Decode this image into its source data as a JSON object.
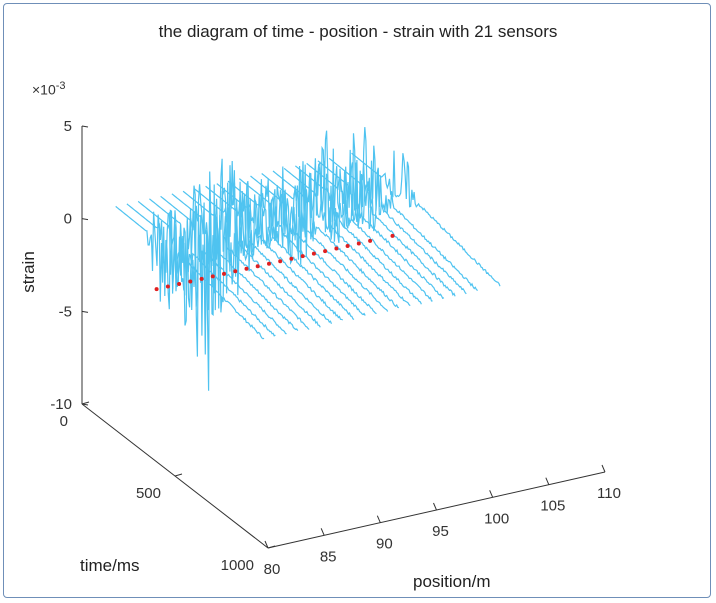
{
  "chart_data": {
    "type": "line",
    "title": "the diagram of time - position - strain with 21 sensors",
    "xlabel": "position/m",
    "ylabel": "time/ms",
    "zlabel": "strain",
    "z_scale_label": "×10",
    "z_scale_exponent": "-3",
    "x_ticks": [
      "80",
      "85",
      "90",
      "95",
      "100",
      "105",
      "110"
    ],
    "y_ticks": [
      "0",
      "500",
      "1000"
    ],
    "z_ticks": [
      "5",
      "0",
      "-5",
      "-10"
    ],
    "xlim": [
      80,
      110
    ],
    "ylim": [
      0,
      1000
    ],
    "zlim": [
      -10,
      5
    ],
    "series_color": "#4fc3f0",
    "marker_color": "#e02020",
    "sensor_positions": [
      83,
      84,
      85,
      86,
      87,
      88,
      89,
      90,
      91,
      92,
      93,
      94,
      95,
      96,
      97,
      98,
      99,
      100,
      101,
      102,
      104
    ],
    "sensor_peak_strain": [
      2.8,
      2.2,
      2.5,
      3.0,
      3.6,
      4.5,
      4.0,
      3.2,
      2.6,
      2.4,
      2.5,
      3.0,
      3.5,
      2.8,
      3.2,
      4.8,
      2.4,
      3.8,
      4.2,
      3.0,
      2.5
    ],
    "sensor_min_strain": [
      -4.0,
      -3.0,
      -5.0,
      -6.5,
      -8.5,
      -5.0,
      -4.0,
      -2.5,
      -2.0,
      -1.5,
      -1.5,
      -2.5,
      -3.5,
      -2.0,
      -1.5,
      -2.0,
      -1.0,
      -1.5,
      -2.0,
      -1.0,
      -0.8
    ],
    "marker_time_ms": 220
  }
}
